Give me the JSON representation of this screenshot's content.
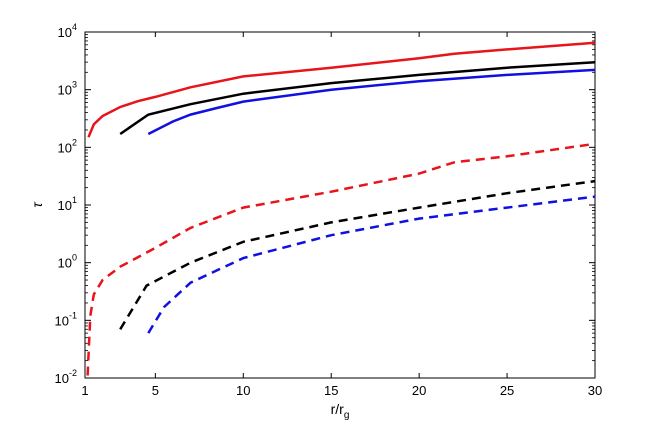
{
  "chart_data": {
    "type": "line",
    "title": "",
    "xlabel": {
      "main": "r/r",
      "sub": "g"
    },
    "ylabel": "τ",
    "xlim": [
      1,
      30
    ],
    "ylim": [
      0.01,
      10000
    ],
    "yscale": "log",
    "grid": false,
    "x_ticks": [
      {
        "value": 1,
        "label": "1"
      },
      {
        "value": 5,
        "label": "5"
      },
      {
        "value": 10,
        "label": "10"
      },
      {
        "value": 15,
        "label": "15"
      },
      {
        "value": 20,
        "label": "20"
      },
      {
        "value": 25,
        "label": "25"
      },
      {
        "value": 30,
        "label": "30"
      }
    ],
    "y_ticks": [
      {
        "value": 0.01,
        "base": "10",
        "exp": "-2"
      },
      {
        "value": 0.1,
        "base": "10",
        "exp": "-1"
      },
      {
        "value": 1,
        "base": "10",
        "exp": "0"
      },
      {
        "value": 10,
        "base": "10",
        "exp": "1"
      },
      {
        "value": 100,
        "base": "10",
        "exp": "2"
      },
      {
        "value": 1000,
        "base": "10",
        "exp": "3"
      },
      {
        "value": 10000,
        "base": "10",
        "exp": "4"
      }
    ],
    "series": [
      {
        "color": "#e8141b",
        "dash": "solid",
        "points": [
          [
            1.2,
            150
          ],
          [
            1.5,
            250
          ],
          [
            2,
            350
          ],
          [
            3,
            500
          ],
          [
            4,
            630
          ],
          [
            5,
            750
          ],
          [
            7,
            1100
          ],
          [
            10,
            1700
          ],
          [
            15,
            2400
          ],
          [
            20,
            3500
          ],
          [
            22,
            4200
          ],
          [
            25,
            5000
          ],
          [
            30,
            6500
          ]
        ]
      },
      {
        "color": "#000000",
        "dash": "solid",
        "points": [
          [
            3,
            170
          ],
          [
            4.6,
            370
          ],
          [
            7,
            560
          ],
          [
            10,
            850
          ],
          [
            15,
            1300
          ],
          [
            20,
            1800
          ],
          [
            25,
            2400
          ],
          [
            30,
            3000
          ]
        ]
      },
      {
        "color": "#1010e0",
        "dash": "solid",
        "points": [
          [
            4.6,
            170
          ],
          [
            6,
            280
          ],
          [
            7,
            370
          ],
          [
            8.5,
            480
          ],
          [
            10,
            620
          ],
          [
            15,
            1000
          ],
          [
            20,
            1400
          ],
          [
            25,
            1800
          ],
          [
            30,
            2200
          ]
        ]
      },
      {
        "color": "#e8141b",
        "dash": "dashed",
        "points": [
          [
            1.15,
            0.011
          ],
          [
            1.3,
            0.12
          ],
          [
            1.5,
            0.28
          ],
          [
            2,
            0.5
          ],
          [
            3,
            0.85
          ],
          [
            5,
            1.8
          ],
          [
            7,
            4
          ],
          [
            10,
            9
          ],
          [
            15,
            17
          ],
          [
            20,
            35
          ],
          [
            22,
            55
          ],
          [
            25,
            70
          ],
          [
            30,
            115
          ]
        ]
      },
      {
        "color": "#000000",
        "dash": "dashed",
        "points": [
          [
            3,
            0.07
          ],
          [
            4.5,
            0.4
          ],
          [
            7,
            1.0
          ],
          [
            10,
            2.3
          ],
          [
            15,
            5
          ],
          [
            20,
            9
          ],
          [
            25,
            16
          ],
          [
            30,
            26
          ]
        ]
      },
      {
        "color": "#1010e0",
        "dash": "dashed",
        "points": [
          [
            4.6,
            0.06
          ],
          [
            5.5,
            0.17
          ],
          [
            7,
            0.45
          ],
          [
            10,
            1.2
          ],
          [
            15,
            3
          ],
          [
            20,
            5.8
          ],
          [
            25,
            9
          ],
          [
            30,
            14
          ]
        ]
      }
    ]
  }
}
